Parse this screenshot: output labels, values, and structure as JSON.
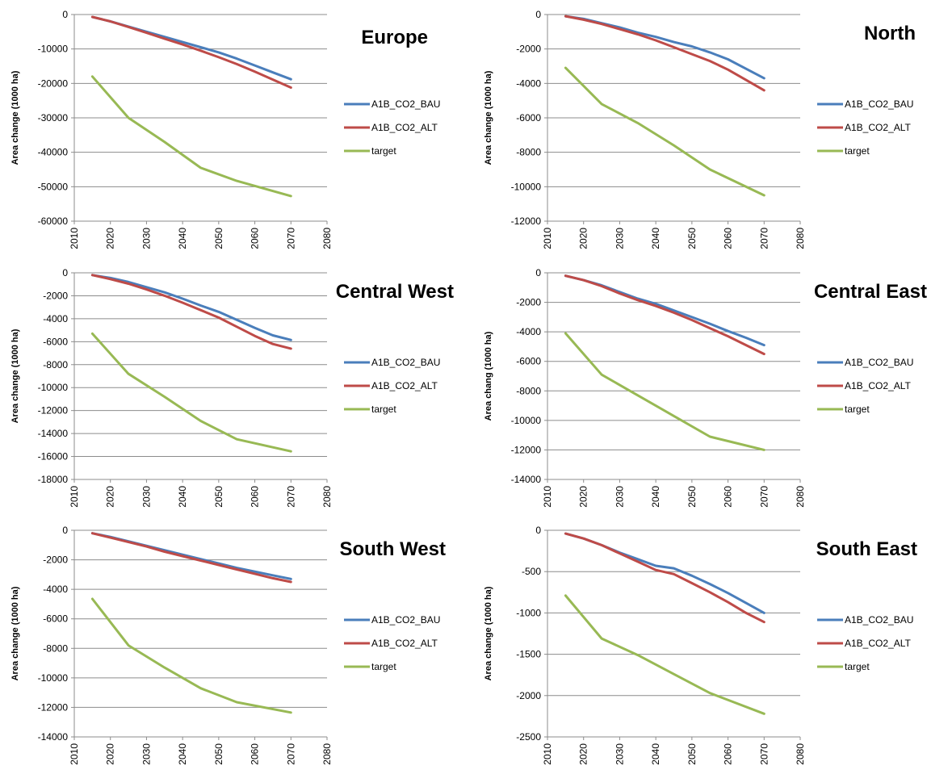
{
  "colors": {
    "A1B_CO2_BAU": "#4a7ebb",
    "A1B_CO2_ALT": "#be4b48",
    "target": "#98b954"
  },
  "chart_data": [
    {
      "type": "line",
      "title": "Europe",
      "ylabel": "Area change (1000 ha)",
      "xlim": [
        2010,
        2080
      ],
      "xticks": [
        2010,
        2020,
        2030,
        2040,
        2050,
        2060,
        2070,
        2080
      ],
      "ylim": [
        -60000,
        0
      ],
      "ystep": 10000,
      "grid": "horizontal",
      "legend": "right",
      "series": [
        {
          "name": "A1B_CO2_BAU",
          "color": "#4a7ebb",
          "x": [
            2015,
            2020,
            2025,
            2030,
            2035,
            2040,
            2045,
            2050,
            2055,
            2060,
            2065,
            2070
          ],
          "y": [
            -700,
            -2000,
            -3500,
            -5000,
            -6500,
            -8000,
            -9500,
            -11000,
            -12800,
            -14800,
            -16800,
            -18800
          ]
        },
        {
          "name": "A1B_CO2_ALT",
          "color": "#be4b48",
          "x": [
            2015,
            2020,
            2025,
            2030,
            2035,
            2040,
            2045,
            2050,
            2055,
            2060,
            2065,
            2070
          ],
          "y": [
            -700,
            -2000,
            -3600,
            -5300,
            -7000,
            -8700,
            -10500,
            -12400,
            -14400,
            -16600,
            -18900,
            -21200
          ]
        },
        {
          "name": "target",
          "color": "#98b954",
          "x": [
            2015,
            2025,
            2035,
            2045,
            2055,
            2070
          ],
          "y": [
            -18000,
            -30000,
            -37000,
            -44500,
            -48300,
            -52700
          ]
        }
      ]
    },
    {
      "type": "line",
      "title": "North",
      "ylabel": "Area change (1000 ha)",
      "xlim": [
        2010,
        2080
      ],
      "xticks": [
        2010,
        2020,
        2030,
        2040,
        2050,
        2060,
        2070,
        2080
      ],
      "ylim": [
        -12000,
        0
      ],
      "ystep": 2000,
      "grid": "horizontal",
      "legend": "right",
      "series": [
        {
          "name": "A1B_CO2_BAU",
          "color": "#4a7ebb",
          "x": [
            2015,
            2020,
            2025,
            2030,
            2035,
            2040,
            2045,
            2050,
            2055,
            2060,
            2065,
            2070
          ],
          "y": [
            -100,
            -250,
            -500,
            -750,
            -1050,
            -1300,
            -1600,
            -1850,
            -2200,
            -2600,
            -3150,
            -3700
          ]
        },
        {
          "name": "A1B_CO2_ALT",
          "color": "#be4b48",
          "x": [
            2015,
            2020,
            2025,
            2030,
            2035,
            2040,
            2045,
            2050,
            2055,
            2060,
            2065,
            2070
          ],
          "y": [
            -100,
            -300,
            -550,
            -850,
            -1150,
            -1500,
            -1900,
            -2300,
            -2700,
            -3200,
            -3800,
            -4400
          ]
        },
        {
          "name": "target",
          "color": "#98b954",
          "x": [
            2015,
            2025,
            2035,
            2045,
            2055,
            2070
          ],
          "y": [
            -3100,
            -5200,
            -6300,
            -7600,
            -9000,
            -10500
          ]
        }
      ]
    },
    {
      "type": "line",
      "title": "Central West",
      "ylabel": "Area change (1000 ha)",
      "xlim": [
        2010,
        2080
      ],
      "xticks": [
        2010,
        2020,
        2030,
        2040,
        2050,
        2060,
        2070,
        2080
      ],
      "ylim": [
        -18000,
        0
      ],
      "ystep": 2000,
      "grid": "horizontal",
      "legend": "right",
      "series": [
        {
          "name": "A1B_CO2_BAU",
          "color": "#4a7ebb",
          "x": [
            2015,
            2020,
            2025,
            2030,
            2035,
            2040,
            2045,
            2050,
            2055,
            2060,
            2065,
            2070
          ],
          "y": [
            -200,
            -450,
            -800,
            -1250,
            -1700,
            -2250,
            -2850,
            -3400,
            -4100,
            -4800,
            -5450,
            -5850
          ]
        },
        {
          "name": "A1B_CO2_ALT",
          "color": "#be4b48",
          "x": [
            2015,
            2020,
            2025,
            2030,
            2035,
            2040,
            2045,
            2050,
            2055,
            2060,
            2065,
            2070
          ],
          "y": [
            -200,
            -550,
            -950,
            -1450,
            -2000,
            -2600,
            -3250,
            -3900,
            -4700,
            -5500,
            -6200,
            -6600
          ]
        },
        {
          "name": "target",
          "color": "#98b954",
          "x": [
            2015,
            2025,
            2035,
            2045,
            2055,
            2070
          ],
          "y": [
            -5300,
            -8800,
            -10800,
            -12900,
            -14500,
            -15550
          ]
        }
      ]
    },
    {
      "type": "line",
      "title": "Central East",
      "ylabel": "Area chang (1000 ha)",
      "xlim": [
        2010,
        2080
      ],
      "xticks": [
        2010,
        2020,
        2030,
        2040,
        2050,
        2060,
        2070,
        2080
      ],
      "ylim": [
        -14000,
        0
      ],
      "ystep": 2000,
      "grid": "horizontal",
      "legend": "right",
      "series": [
        {
          "name": "A1B_CO2_BAU",
          "color": "#4a7ebb",
          "x": [
            2015,
            2020,
            2025,
            2030,
            2035,
            2040,
            2045,
            2050,
            2055,
            2060,
            2065,
            2070
          ],
          "y": [
            -200,
            -500,
            -850,
            -1300,
            -1750,
            -2100,
            -2550,
            -3000,
            -3450,
            -3950,
            -4400,
            -4900
          ]
        },
        {
          "name": "A1B_CO2_ALT",
          "color": "#be4b48",
          "x": [
            2015,
            2020,
            2025,
            2030,
            2035,
            2040,
            2045,
            2050,
            2055,
            2060,
            2065,
            2070
          ],
          "y": [
            -200,
            -500,
            -900,
            -1400,
            -1850,
            -2250,
            -2700,
            -3200,
            -3750,
            -4300,
            -4900,
            -5500
          ]
        },
        {
          "name": "target",
          "color": "#98b954",
          "x": [
            2015,
            2025,
            2035,
            2045,
            2055,
            2060,
            2070
          ],
          "y": [
            -4100,
            -6900,
            -8300,
            -9700,
            -11100,
            -11400,
            -12000
          ]
        }
      ]
    },
    {
      "type": "line",
      "title": "South West",
      "ylabel": "Area change (1000 ha)",
      "xlim": [
        2010,
        2080
      ],
      "xticks": [
        2010,
        2020,
        2030,
        2040,
        2050,
        2060,
        2070,
        2080
      ],
      "ylim": [
        -14000,
        0
      ],
      "ystep": 2000,
      "grid": "horizontal",
      "legend": "right",
      "series": [
        {
          "name": "A1B_CO2_BAU",
          "color": "#4a7ebb",
          "x": [
            2015,
            2020,
            2025,
            2030,
            2035,
            2040,
            2045,
            2050,
            2055,
            2060,
            2065,
            2070
          ],
          "y": [
            -200,
            -450,
            -750,
            -1050,
            -1350,
            -1650,
            -1950,
            -2250,
            -2550,
            -2800,
            -3050,
            -3300
          ]
        },
        {
          "name": "A1B_CO2_ALT",
          "color": "#be4b48",
          "x": [
            2015,
            2020,
            2025,
            2030,
            2035,
            2040,
            2045,
            2050,
            2055,
            2060,
            2065,
            2070
          ],
          "y": [
            -200,
            -500,
            -800,
            -1100,
            -1450,
            -1750,
            -2050,
            -2350,
            -2650,
            -2950,
            -3250,
            -3500
          ]
        },
        {
          "name": "target",
          "color": "#98b954",
          "x": [
            2015,
            2025,
            2035,
            2045,
            2055,
            2070
          ],
          "y": [
            -4650,
            -7800,
            -9300,
            -10700,
            -11650,
            -12350
          ]
        }
      ]
    },
    {
      "type": "line",
      "title": "South East",
      "ylabel": "Area change (1000 ha)",
      "xlim": [
        2010,
        2080
      ],
      "xticks": [
        2010,
        2020,
        2030,
        2040,
        2050,
        2060,
        2070,
        2080
      ],
      "ylim": [
        -2500,
        0
      ],
      "ystep": 500,
      "grid": "horizontal",
      "legend": "right",
      "series": [
        {
          "name": "A1B_CO2_BAU",
          "color": "#4a7ebb",
          "x": [
            2015,
            2020,
            2025,
            2030,
            2035,
            2040,
            2045,
            2050,
            2055,
            2060,
            2065,
            2070
          ],
          "y": [
            -40,
            -100,
            -180,
            -270,
            -350,
            -430,
            -460,
            -550,
            -650,
            -760,
            -880,
            -1000
          ]
        },
        {
          "name": "A1B_CO2_ALT",
          "color": "#be4b48",
          "x": [
            2015,
            2020,
            2025,
            2030,
            2035,
            2040,
            2045,
            2050,
            2055,
            2060,
            2065,
            2070
          ],
          "y": [
            -40,
            -100,
            -180,
            -280,
            -380,
            -480,
            -530,
            -640,
            -750,
            -870,
            -1000,
            -1110
          ]
        },
        {
          "name": "target",
          "color": "#98b954",
          "x": [
            2015,
            2025,
            2035,
            2045,
            2055,
            2070
          ],
          "y": [
            -790,
            -1310,
            -1510,
            -1740,
            -1970,
            -2220
          ]
        }
      ]
    }
  ]
}
